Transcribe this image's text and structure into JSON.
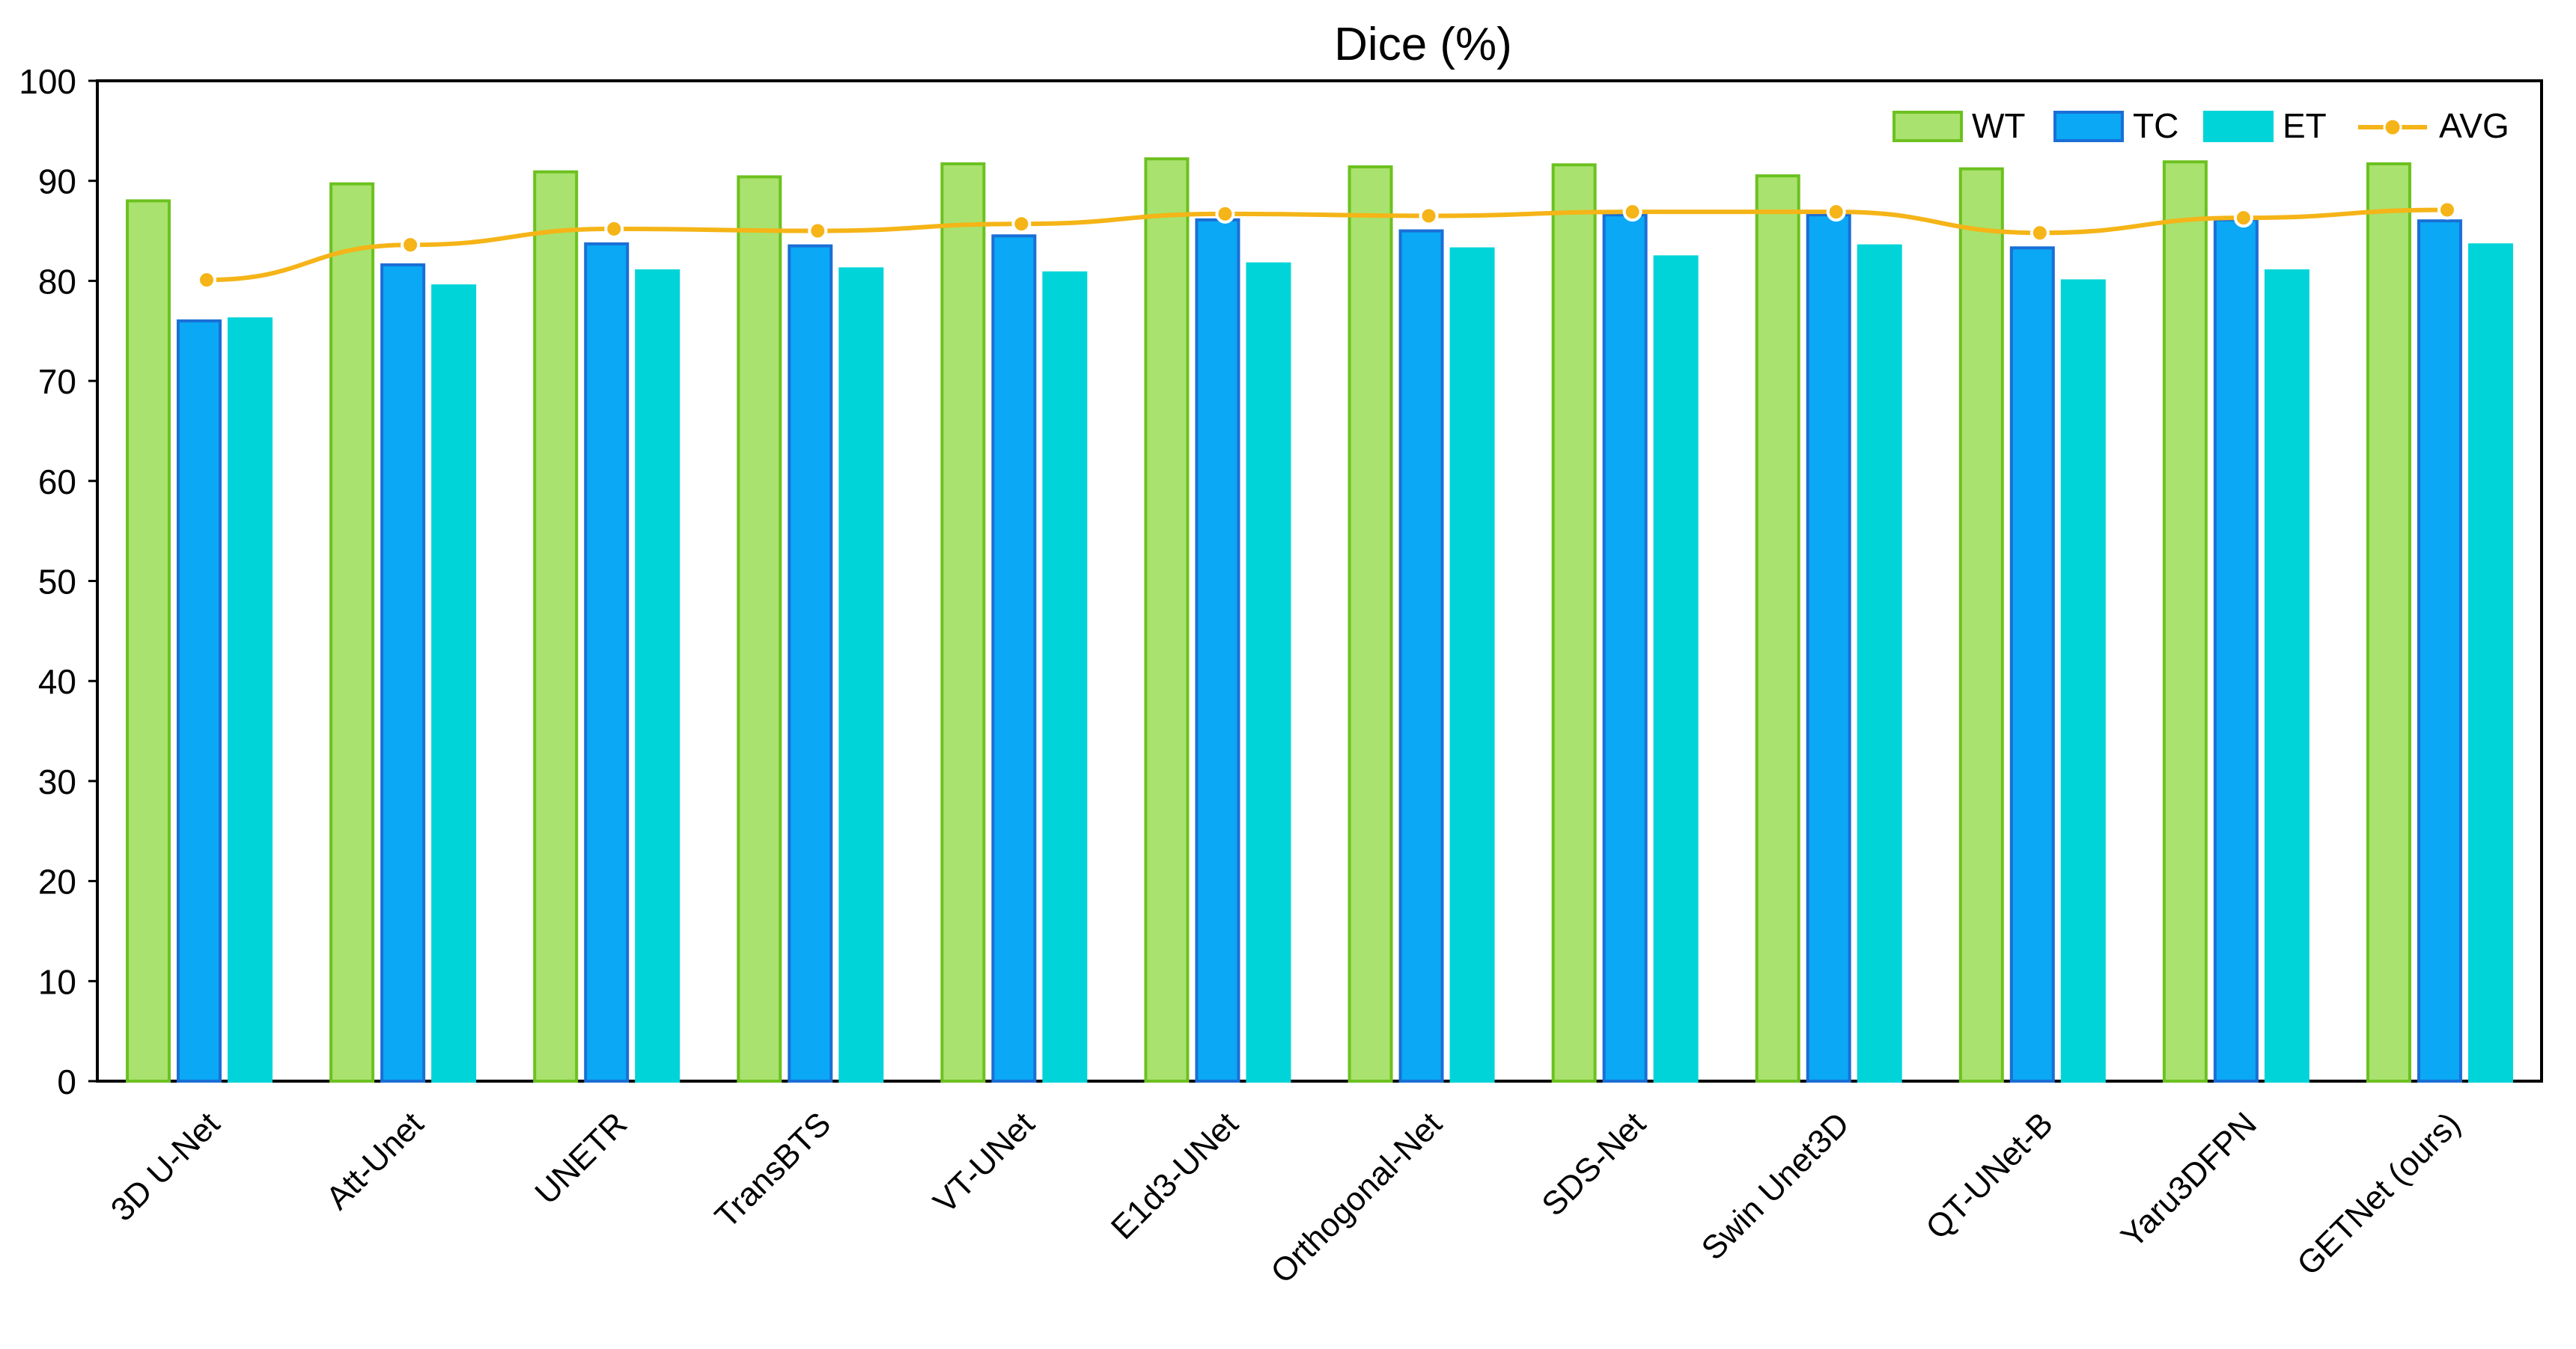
{
  "chart_data": {
    "type": "bar",
    "title": "Dice (%)",
    "xlabel": "",
    "ylabel": "",
    "ylim": [
      0,
      100
    ],
    "yticks": [
      0,
      10,
      20,
      30,
      40,
      50,
      60,
      70,
      80,
      90,
      100
    ],
    "grid": false,
    "legend_position": "top-right",
    "categories": [
      "3D U-Net",
      "Att-Unet",
      "UNETR",
      "TransBTS",
      "VT-UNet",
      "E1d3-UNet",
      "Orthogonal-Net",
      "SDS-Net",
      "Swin Unet3D",
      "QT-UNet-B",
      "Yaru3DFPN",
      "GETNet (ours)"
    ],
    "series": [
      {
        "name": "WT",
        "kind": "bar",
        "fill": "#a9e26e",
        "stroke": "#6cc11f",
        "values": [
          88.0,
          89.7,
          90.9,
          90.4,
          91.7,
          92.2,
          91.4,
          91.6,
          90.5,
          91.2,
          91.9,
          91.7
        ]
      },
      {
        "name": "TC",
        "kind": "bar",
        "fill": "#0aa8f5",
        "stroke": "#1a6fd6",
        "values": [
          76.0,
          81.6,
          83.7,
          83.5,
          84.5,
          86.1,
          85.0,
          86.6,
          86.6,
          83.3,
          86.1,
          86.0
        ]
      },
      {
        "name": "ET",
        "kind": "bar",
        "fill": "#00d4d8",
        "stroke": "#00d4d8",
        "values": [
          76.2,
          79.5,
          81.0,
          81.2,
          80.8,
          81.7,
          83.2,
          82.4,
          83.5,
          80.0,
          81.0,
          83.6
        ]
      },
      {
        "name": "AVG",
        "kind": "line",
        "stroke": "#f5b417",
        "marker_fill": "#f5b417",
        "values": [
          80.1,
          83.6,
          85.2,
          85.0,
          85.7,
          86.7,
          86.5,
          86.9,
          86.9,
          84.8,
          86.3,
          87.1
        ]
      }
    ]
  }
}
